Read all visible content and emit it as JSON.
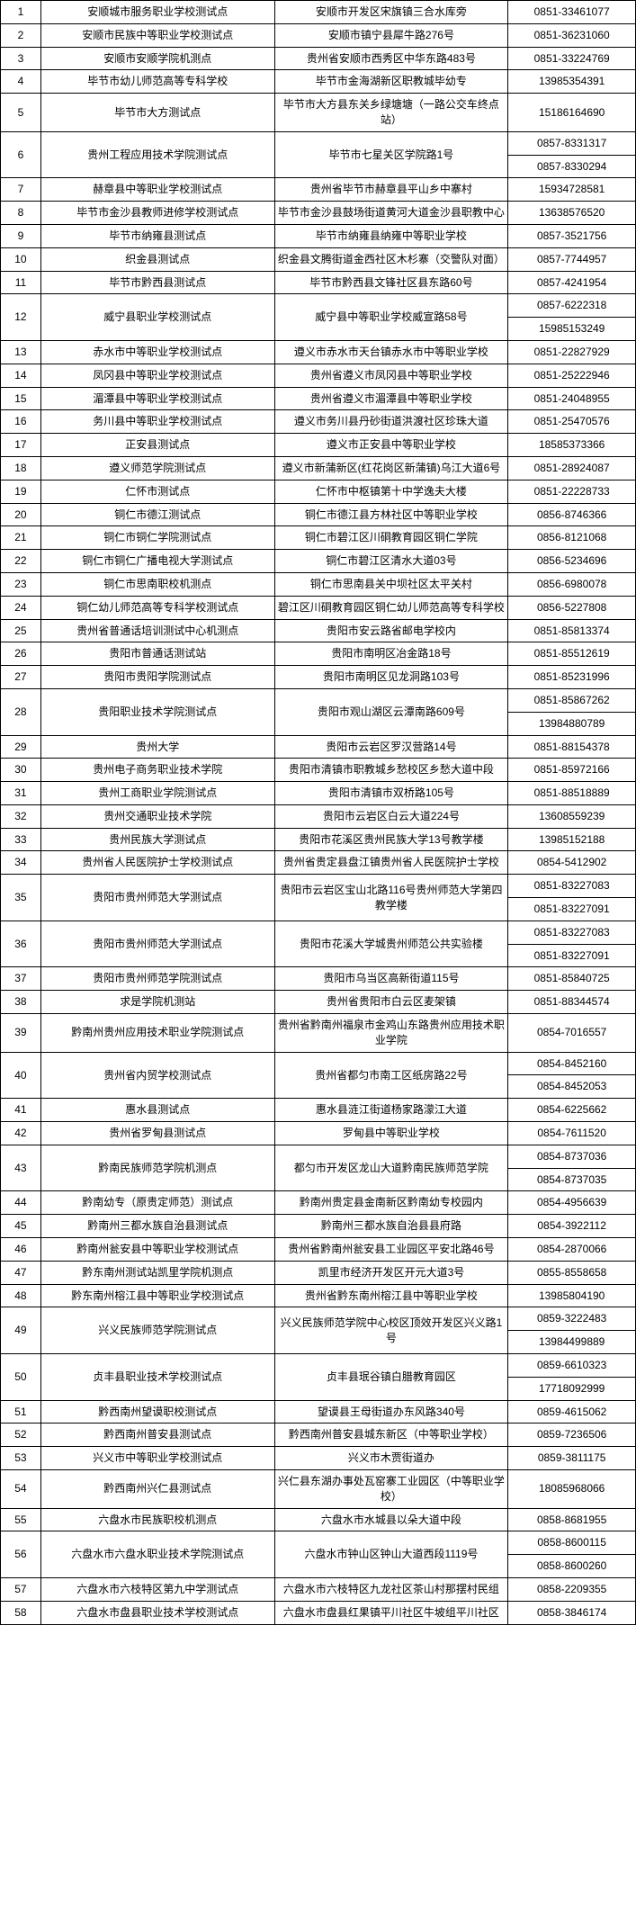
{
  "rows": [
    {
      "n": "1",
      "name": "安顺城市服务职业学校测试点",
      "addr": "安顺市开发区宋旗镇三合水库旁",
      "tel": [
        "0851-33461077"
      ]
    },
    {
      "n": "2",
      "name": "安顺市民族中等职业学校测试点",
      "addr": "安顺市镇宁县犀牛路276号",
      "tel": [
        "0851-36231060"
      ]
    },
    {
      "n": "3",
      "name": "安顺市安顺学院机测点",
      "addr": "贵州省安顺市西秀区中华东路483号",
      "tel": [
        "0851-33224769"
      ]
    },
    {
      "n": "4",
      "name": "毕节市幼儿师范高等专科学校",
      "addr": "毕节市金海湖新区职教城毕幼专",
      "tel": [
        "13985354391"
      ]
    },
    {
      "n": "5",
      "name": "毕节市大方测试点",
      "addr": "毕节市大方县东关乡绿塘塘（一路公交车终点站）",
      "tel": [
        "15186164690"
      ]
    },
    {
      "n": "6",
      "name": "贵州工程应用技术学院测试点",
      "addr": "毕节市七星关区学院路1号",
      "tel": [
        "0857-8331317",
        "0857-8330294"
      ]
    },
    {
      "n": "7",
      "name": "赫章县中等职业学校测试点",
      "addr": "贵州省毕节市赫章县平山乡中寨村",
      "tel": [
        "15934728581"
      ]
    },
    {
      "n": "8",
      "name": "毕节市金沙县教师进修学校测试点",
      "addr": "毕节市金沙县鼓场街道黄河大道金沙县职教中心",
      "tel": [
        "13638576520"
      ]
    },
    {
      "n": "9",
      "name": "毕节市纳雍县测试点",
      "addr": "毕节市纳雍县纳雍中等职业学校",
      "tel": [
        "0857-3521756"
      ]
    },
    {
      "n": "10",
      "name": "织金县测试点",
      "addr": "织金县文腾街道金西社区木杉寨（交警队对面）",
      "tel": [
        "0857-7744957"
      ]
    },
    {
      "n": "11",
      "name": "毕节市黔西县测试点",
      "addr": "毕节市黔西县文锋社区县东路60号",
      "tel": [
        "0857-4241954"
      ]
    },
    {
      "n": "12",
      "name": "威宁县职业学校测试点",
      "addr": "威宁县中等职业学校威宣路58号",
      "tel": [
        "0857-6222318",
        "15985153249"
      ]
    },
    {
      "n": "13",
      "name": "赤水市中等职业学校测试点",
      "addr": "遵义市赤水市天台镇赤水市中等职业学校",
      "tel": [
        "0851-22827929"
      ]
    },
    {
      "n": "14",
      "name": "凤冈县中等职业学校测试点",
      "addr": "贵州省遵义市凤冈县中等职业学校",
      "tel": [
        "0851-25222946"
      ]
    },
    {
      "n": "15",
      "name": "湄潭县中等职业学校测试点",
      "addr": "贵州省遵义市湄潭县中等职业学校",
      "tel": [
        "0851-24048955"
      ]
    },
    {
      "n": "16",
      "name": "务川县中等职业学校测试点",
      "addr": "遵义市务川县丹砂街道洪渡社区珍珠大道",
      "tel": [
        "0851-25470576"
      ]
    },
    {
      "n": "17",
      "name": "正安县测试点",
      "addr": "遵义市正安县中等职业学校",
      "tel": [
        "18585373366"
      ]
    },
    {
      "n": "18",
      "name": "遵义师范学院测试点",
      "addr": "遵义市新蒲新区(红花岗区新蒲镇)乌江大道6号",
      "tel": [
        "0851-28924087"
      ]
    },
    {
      "n": "19",
      "name": "仁怀市测试点",
      "addr": "仁怀市中枢镇第十中学逸夫大楼",
      "tel": [
        "0851-22228733"
      ]
    },
    {
      "n": "20",
      "name": "铜仁市德江测试点",
      "addr": "铜仁市德江县方林社区中等职业学校",
      "tel": [
        "0856-8746366"
      ]
    },
    {
      "n": "21",
      "name": "铜仁市铜仁学院测试点",
      "addr": "铜仁市碧江区川硐教育园区铜仁学院",
      "tel": [
        "0856-8121068"
      ]
    },
    {
      "n": "22",
      "name": "铜仁市铜仁广播电视大学测试点",
      "addr": "铜仁市碧江区清水大道03号",
      "tel": [
        "0856-5234696"
      ]
    },
    {
      "n": "23",
      "name": "铜仁市思南职校机测点",
      "addr": "铜仁市思南县关中坝社区太平关村",
      "tel": [
        "0856-6980078"
      ]
    },
    {
      "n": "24",
      "name": "铜仁幼儿师范高等专科学校测试点",
      "addr": "碧江区川硐教育园区铜仁幼儿师范高等专科学校",
      "tel": [
        "0856-5227808"
      ]
    },
    {
      "n": "25",
      "name": "贵州省普通话培训测试中心机测点",
      "addr": "贵阳市安云路省邮电学校内",
      "tel": [
        "0851-85813374"
      ]
    },
    {
      "n": "26",
      "name": "贵阳市普通话测试站",
      "addr": "贵阳市南明区冶金路18号",
      "tel": [
        "0851-85512619"
      ]
    },
    {
      "n": "27",
      "name": "贵阳市贵阳学院测试点",
      "addr": "贵阳市南明区见龙洞路103号",
      "tel": [
        "0851-85231996"
      ]
    },
    {
      "n": "28",
      "name": "贵阳职业技术学院测试点",
      "addr": "贵阳市观山湖区云潭南路609号",
      "tel": [
        "0851-85867262",
        "13984880789"
      ]
    },
    {
      "n": "29",
      "name": "贵州大学",
      "addr": "贵阳市云岩区罗汉营路14号",
      "tel": [
        "0851-88154378"
      ]
    },
    {
      "n": "30",
      "name": "贵州电子商务职业技术学院",
      "addr": "贵阳市清镇市职教城乡愁校区乡愁大道中段",
      "tel": [
        "0851-85972166"
      ]
    },
    {
      "n": "31",
      "name": "贵州工商职业学院测试点",
      "addr": "贵阳市清镇市双桥路105号",
      "tel": [
        "0851-88518889"
      ]
    },
    {
      "n": "32",
      "name": "贵州交通职业技术学院",
      "addr": "贵阳市云岩区白云大道224号",
      "tel": [
        "13608559239"
      ]
    },
    {
      "n": "33",
      "name": "贵州民族大学测试点",
      "addr": "贵阳市花溪区贵州民族大学13号教学楼",
      "tel": [
        "13985152188"
      ]
    },
    {
      "n": "34",
      "name": "贵州省人民医院护士学校测试点",
      "addr": "贵州省贵定县盘江镇贵州省人民医院护士学校",
      "tel": [
        "0854-5412902"
      ]
    },
    {
      "n": "35",
      "name": "贵阳市贵州师范大学测试点",
      "addr": "贵阳市云岩区宝山北路116号贵州师范大学第四教学楼",
      "tel": [
        "0851-83227083",
        "0851-83227091"
      ]
    },
    {
      "n": "36",
      "name": "贵阳市贵州师范大学测试点",
      "addr": "贵阳市花溪大学城贵州师范公共实验楼",
      "tel": [
        "0851-83227083",
        "0851-83227091"
      ]
    },
    {
      "n": "37",
      "name": "贵阳市贵州师范学院测试点",
      "addr": "贵阳市乌当区高新街道115号",
      "tel": [
        "0851-85840725"
      ]
    },
    {
      "n": "38",
      "name": "求是学院机测站",
      "addr": "贵州省贵阳市白云区麦架镇",
      "tel": [
        "0851-88344574"
      ]
    },
    {
      "n": "39",
      "name": "黔南州贵州应用技术职业学院测试点",
      "addr": "贵州省黔南州福泉市金鸡山东路贵州应用技术职业学院",
      "tel": [
        "0854-7016557"
      ]
    },
    {
      "n": "40",
      "name": "贵州省内贸学校测试点",
      "addr": "贵州省都匀市南工区纸房路22号",
      "tel": [
        "0854-8452160",
        "0854-8452053"
      ]
    },
    {
      "n": "41",
      "name": "惠水县测试点",
      "addr": "惠水县涟江街道杨家路濛江大道",
      "tel": [
        "0854-6225662"
      ]
    },
    {
      "n": "42",
      "name": "贵州省罗甸县测试点",
      "addr": "罗甸县中等职业学校",
      "tel": [
        "0854-7611520"
      ]
    },
    {
      "n": "43",
      "name": "黔南民族师范学院机测点",
      "addr": "都匀市开发区龙山大道黔南民族师范学院",
      "tel": [
        "0854-8737036",
        "0854-8737035"
      ]
    },
    {
      "n": "44",
      "name": "黔南幼专（原贵定师范）测试点",
      "addr": "黔南州贵定县金南新区黔南幼专校园内",
      "tel": [
        "0854-4956639"
      ]
    },
    {
      "n": "45",
      "name": "黔南州三都水族自治县测试点",
      "addr": "黔南州三都水族自治县县府路",
      "tel": [
        "0854-3922112"
      ]
    },
    {
      "n": "46",
      "name": "黔南州瓮安县中等职业学校测试点",
      "addr": "贵州省黔南州瓮安县工业园区平安北路46号",
      "tel": [
        "0854-2870066"
      ]
    },
    {
      "n": "47",
      "name": "黔东南州测试站凯里学院机测点",
      "addr": "凯里市经济开发区开元大道3号",
      "tel": [
        "0855-8558658"
      ]
    },
    {
      "n": "48",
      "name": "黔东南州榕江县中等职业学校测试点",
      "addr": "贵州省黔东南州榕江县中等职业学校",
      "tel": [
        "13985804190"
      ]
    },
    {
      "n": "49",
      "name": "兴义民族师范学院测试点",
      "addr": "兴义民族师范学院中心校区顶效开发区兴义路1号",
      "tel": [
        "0859-3222483",
        "13984499889"
      ]
    },
    {
      "n": "50",
      "name": "贞丰县职业技术学校测试点",
      "addr": "贞丰县珉谷镇白腊教育园区",
      "tel": [
        "0859-6610323",
        "17718092999"
      ]
    },
    {
      "n": "51",
      "name": "黔西南州望谟职校测试点",
      "addr": "望谟县王母街道办东风路340号",
      "tel": [
        "0859-4615062"
      ]
    },
    {
      "n": "52",
      "name": "黔西南州普安县测试点",
      "addr": "黔西南州普安县城东新区（中等职业学校）",
      "tel": [
        "0859-7236506"
      ]
    },
    {
      "n": "53",
      "name": "兴义市中等职业学校测试点",
      "addr": "兴义市木贾街道办",
      "tel": [
        "0859-3811175"
      ]
    },
    {
      "n": "54",
      "name": "黔西南州兴仁县测试点",
      "addr": "兴仁县东湖办事处瓦窑寨工业园区（中等职业学校）",
      "tel": [
        "18085968066"
      ]
    },
    {
      "n": "55",
      "name": "六盘水市民族职校机测点",
      "addr": "六盘水市水城县以朵大道中段",
      "tel": [
        "0858-8681955"
      ]
    },
    {
      "n": "56",
      "name": "六盘水市六盘水职业技术学院测试点",
      "addr": "六盘水市钟山区钟山大道西段1119号",
      "tel": [
        "0858-8600115",
        "0858-8600260"
      ]
    },
    {
      "n": "57",
      "name": "六盘水市六枝特区第九中学测试点",
      "addr": "六盘水市六枝特区九龙社区茶山村那摆村民组",
      "tel": [
        "0858-2209355"
      ]
    },
    {
      "n": "58",
      "name": "六盘水市盘县职业技术学校测试点",
      "addr": "六盘水市盘县红果镇平川社区牛坡组平川社区",
      "tel": [
        "0858-3846174"
      ]
    }
  ]
}
